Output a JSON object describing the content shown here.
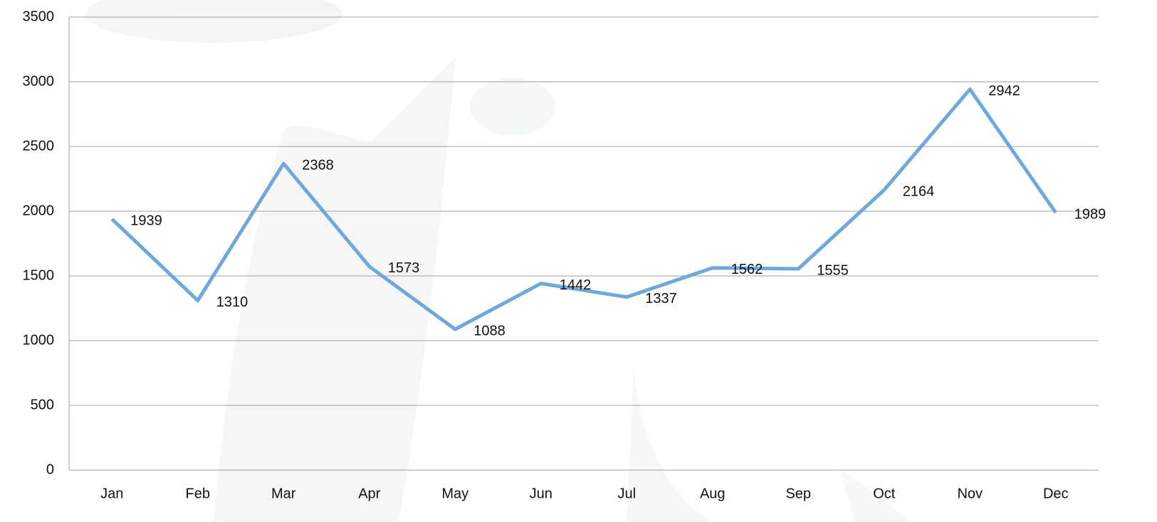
{
  "chart_data": {
    "type": "line",
    "categories": [
      "Jan",
      "Feb",
      "Mar",
      "Apr",
      "May",
      "Jun",
      "Jul",
      "Aug",
      "Sep",
      "Oct",
      "Nov",
      "Dec"
    ],
    "values": [
      1939,
      1310,
      2368,
      1573,
      1088,
      1442,
      1337,
      1562,
      1555,
      2164,
      2942,
      1989
    ],
    "color": "#6fa8dc",
    "ylim": [
      0,
      3500
    ],
    "yticks": [
      0,
      500,
      1000,
      1500,
      2000,
      2500,
      3000,
      3500
    ],
    "grid": true,
    "data_labels": true
  }
}
